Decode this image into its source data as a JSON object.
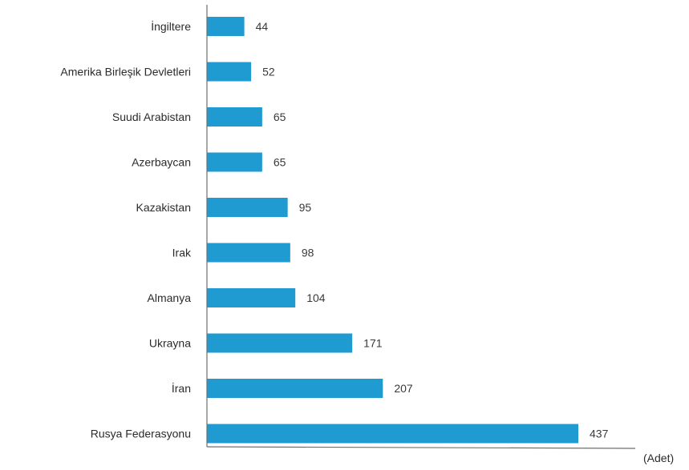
{
  "chart_data": {
    "type": "bar",
    "orientation": "horizontal",
    "categories": [
      "İngiltere",
      "Amerika Birleşik Devletleri",
      "Suudi Arabistan",
      "Azerbaycan",
      "Kazakistan",
      "Irak",
      "Almanya",
      "Ukrayna",
      "İran",
      "Rusya Federasyonu"
    ],
    "values": [
      44,
      52,
      65,
      65,
      95,
      98,
      104,
      171,
      207,
      437
    ],
    "unit_label": "(Adet)",
    "xlim": [
      0,
      437
    ],
    "grid": false,
    "bar_color": "#1f9bd1",
    "axis_color": "#6f6f6f"
  }
}
